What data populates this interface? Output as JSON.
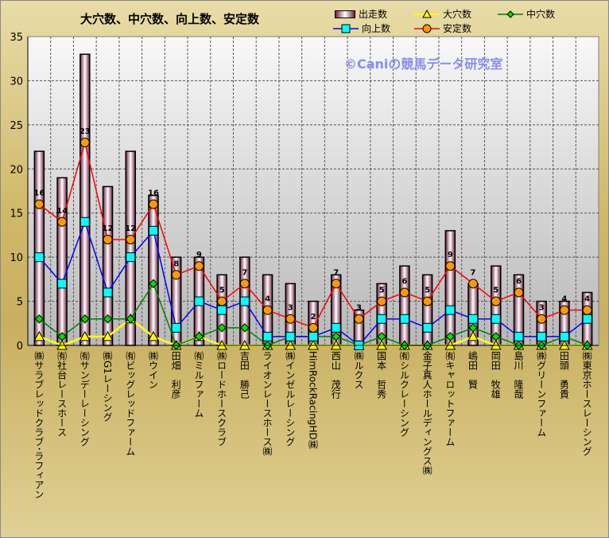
{
  "chart_data": {
    "type": "bar+line",
    "title": "大穴数、中穴数、向上数、安定数",
    "watermark": "©Caniの競馬データ研究室",
    "ylim": [
      0,
      35
    ],
    "yticks": [
      "0",
      "5",
      "10",
      "15",
      "20",
      "25",
      "30",
      "35"
    ],
    "grid": true,
    "legend_position": "top-right",
    "categories": [
      "㈱サラブレッドクラブ･ラフィアン",
      "㈲社台レースホース",
      "㈲サンデーレーシング",
      "㈱G1レーシング",
      "㈲ビッグレッドファーム",
      "㈱ウイン",
      "田畑　利彦",
      "㈲ミルファーム",
      "㈱ロードホースクラブ",
      "吉田　勝己",
      "ライオンレースホース㈱",
      "㈱インゼルレーシング",
      "HimRockRacingHD㈱",
      "西山　茂行",
      "㈱ルクス",
      "国本　哲秀",
      "㈲シルクレーシング",
      "金子真人ホールディングス㈱",
      "㈲キャロットファーム",
      "嶋田　賢",
      "岡田　牧雄",
      "島川　隆哉",
      "㈱グリーンファーム",
      "田頭　勇貴",
      "㈱東京ホースレーシング"
    ],
    "series": [
      {
        "name": "出走数",
        "type": "bar",
        "values": [
          22,
          19,
          33,
          18,
          22,
          17,
          10,
          10,
          8,
          10,
          8,
          7,
          5,
          8,
          4,
          7,
          9,
          8,
          13,
          7,
          9,
          8,
          5,
          5,
          6
        ]
      },
      {
        "name": "大穴数",
        "type": "line",
        "color": "#ffff00",
        "marker": "triangle",
        "values": [
          1,
          0,
          1,
          1,
          3,
          1,
          0,
          1,
          0,
          0,
          0,
          0,
          0,
          0,
          0,
          0,
          0,
          0,
          0,
          1,
          0,
          0,
          0,
          0,
          0
        ]
      },
      {
        "name": "中穴数",
        "type": "line",
        "color": "#008000",
        "marker": "diamond",
        "values": [
          3,
          1,
          3,
          3,
          3,
          7,
          0,
          1,
          2,
          2,
          0,
          1,
          1,
          1,
          0,
          1,
          0,
          0,
          1,
          2,
          1,
          0,
          0,
          1,
          0
        ]
      },
      {
        "name": "向上数",
        "type": "line",
        "color": "#0000ff",
        "marker": "square",
        "values": [
          10,
          7,
          14,
          6,
          10,
          13,
          2,
          5,
          4,
          5,
          1,
          1,
          1,
          2,
          0,
          3,
          3,
          2,
          4,
          3,
          3,
          1,
          1,
          1,
          3
        ]
      },
      {
        "name": "安定数",
        "type": "line",
        "color": "#ff0000",
        "marker": "circle",
        "values": [
          16,
          14,
          23,
          12,
          12,
          16,
          8,
          9,
          5,
          7,
          4,
          3,
          2,
          7,
          3,
          5,
          6,
          5,
          9,
          7,
          5,
          6,
          3,
          4,
          4
        ],
        "data_labels": [
          "16",
          "14",
          "23",
          "12",
          "12",
          "16",
          "8",
          "9",
          "5",
          "7",
          "4",
          "3",
          "2",
          "7",
          "3",
          "5",
          "6",
          "5",
          "9",
          "7",
          "5",
          "6",
          "3",
          "4",
          "4"
        ]
      }
    ]
  }
}
